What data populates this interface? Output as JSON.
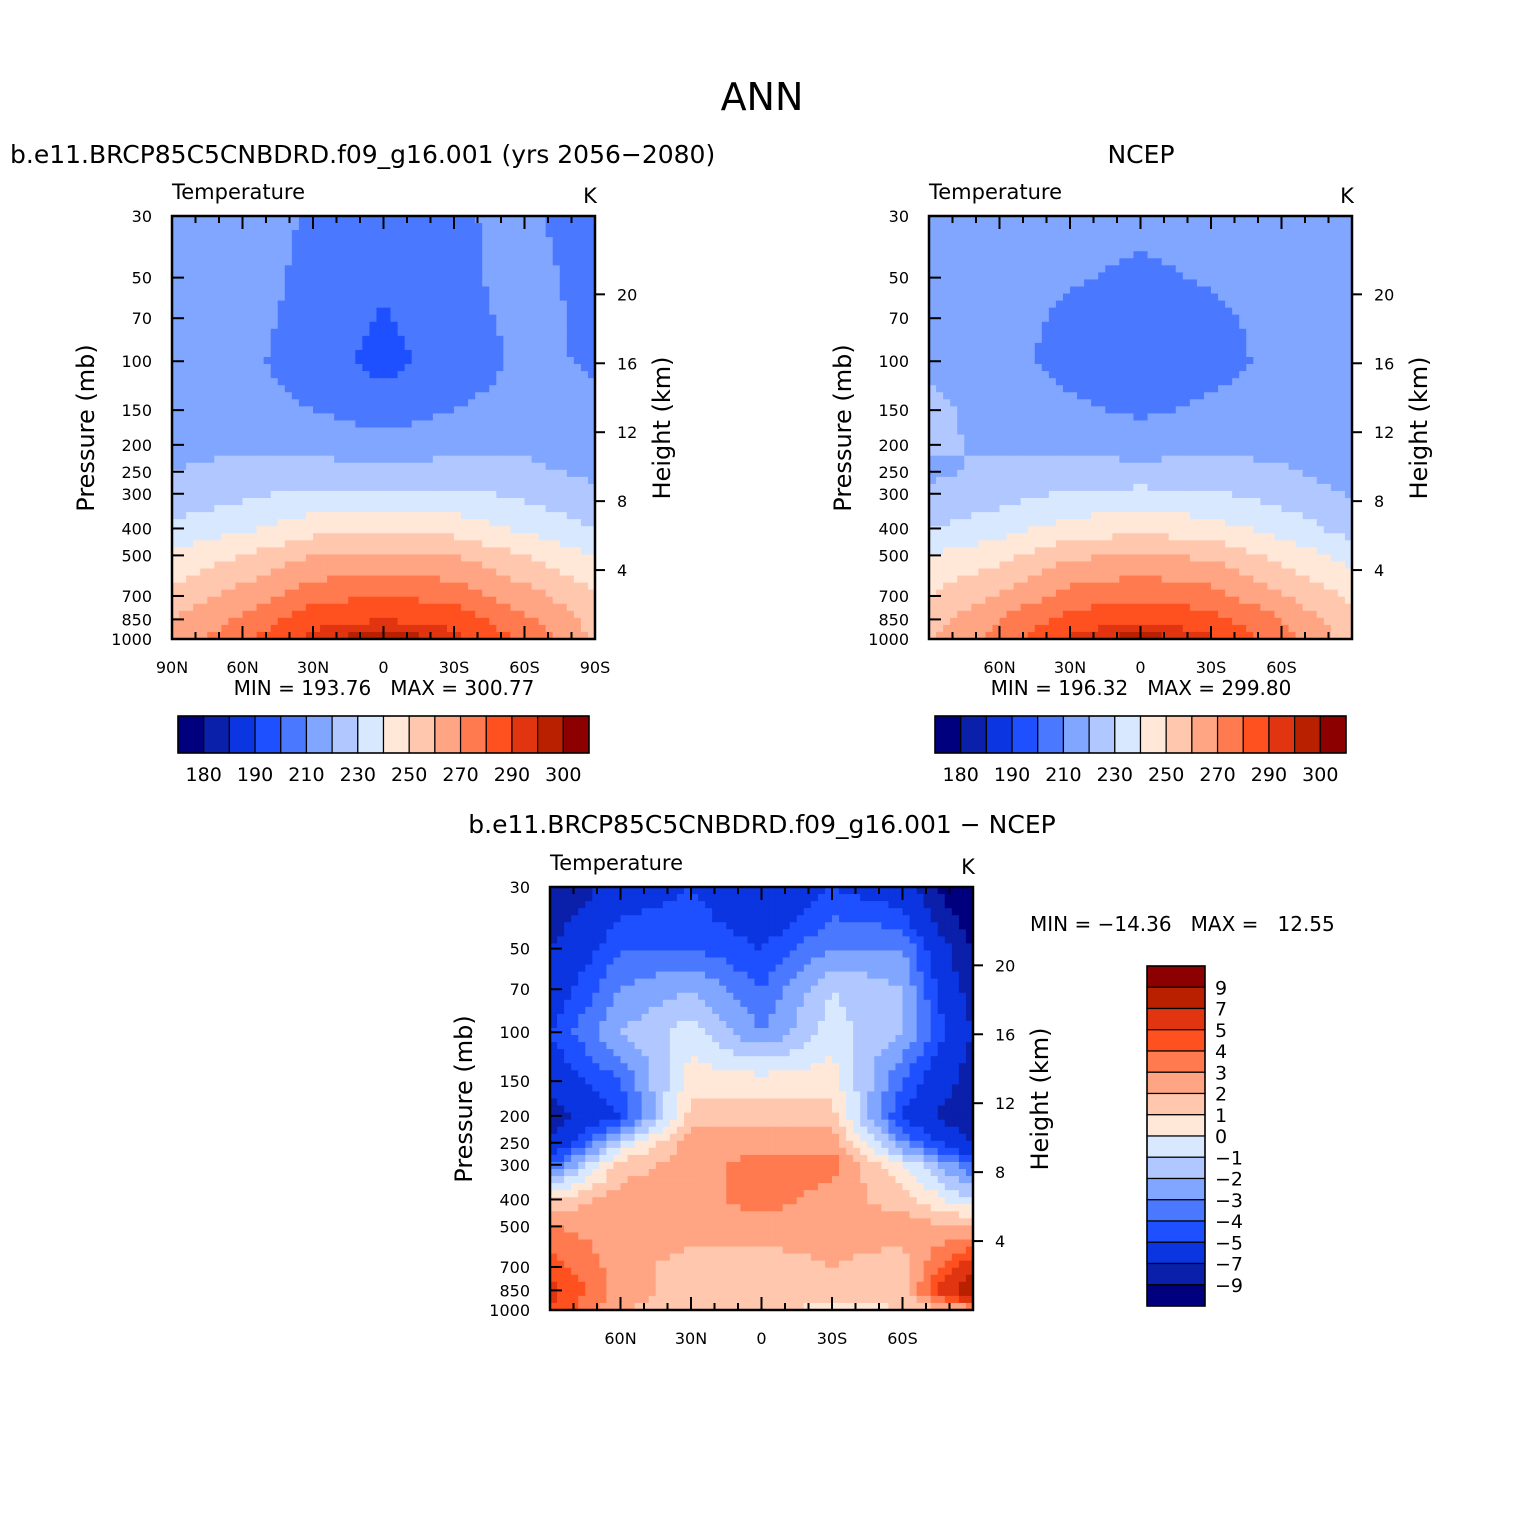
{
  "figure": {
    "title": "ANN"
  },
  "colors": {
    "abs_scale": [
      "#00007f",
      "#0a1faa",
      "#0a35e0",
      "#1e50ff",
      "#4a78ff",
      "#80a6ff",
      "#b0c8ff",
      "#d8e8ff",
      "#ffe8d8",
      "#ffc8ae",
      "#ffa583",
      "#ff7b4f",
      "#ff5020",
      "#e03510",
      "#b82000",
      "#8c0000"
    ],
    "diff_scale": [
      "#8c0000",
      "#b82000",
      "#e03510",
      "#ff5020",
      "#ff7b4f",
      "#ffa583",
      "#ffc8ae",
      "#ffe8d8",
      "#d8e8ff",
      "#b0c8ff",
      "#80a6ff",
      "#4a78ff",
      "#1e50ff",
      "#0a35e0",
      "#0a1faa",
      "#00007f"
    ]
  },
  "chart_data": [
    {
      "type": "heatmap",
      "id": "model",
      "title": "b.e11.BRCP85C5CNBDRD.f09_g16.001 (yrs 2056−2080)",
      "subtitle_left": "Temperature",
      "units": "K",
      "ylabel": "Pressure (mb)",
      "ylabel_right": "Height (km)",
      "x_ticks": [
        "90N",
        "60N",
        "30N",
        "0",
        "30S",
        "60S",
        "90S"
      ],
      "y_ticks": [
        "30",
        "50",
        "70",
        "100",
        "150",
        "200",
        "250",
        "300",
        "400",
        "500",
        "700",
        "850",
        "1000"
      ],
      "y_ticks_right": [
        "20",
        "16",
        "12",
        "8",
        "4"
      ],
      "stats": "MIN = 193.76   MAX = 300.77",
      "colorbar_labels": [
        "180",
        "190",
        "210",
        "230",
        "250",
        "270",
        "290",
        "300"
      ],
      "x": [
        90,
        60,
        30,
        0,
        -30,
        -60,
        -90
      ],
      "levels_mb": [
        30,
        50,
        70,
        100,
        150,
        200,
        250,
        300,
        400,
        500,
        700,
        850,
        1000
      ],
      "values": [
        [
          212,
          214,
          209,
          206,
          209,
          212,
          204
        ],
        [
          214,
          215,
          207,
          202,
          207,
          214,
          206
        ],
        [
          215,
          214,
          206,
          199,
          206,
          213,
          208
        ],
        [
          215,
          213,
          204,
          197,
          204,
          212,
          209
        ],
        [
          216,
          215,
          210,
          204,
          210,
          214,
          212
        ],
        [
          218,
          219,
          217,
          214,
          217,
          219,
          214
        ],
        [
          220,
          222,
          224,
          222,
          224,
          222,
          218
        ],
        [
          223,
          228,
          232,
          233,
          232,
          228,
          222
        ],
        [
          232,
          238,
          246,
          248,
          246,
          238,
          230
        ],
        [
          242,
          250,
          260,
          262,
          260,
          250,
          240
        ],
        [
          252,
          264,
          276,
          280,
          276,
          264,
          252
        ],
        [
          260,
          272,
          286,
          290,
          286,
          272,
          256
        ],
        [
          262,
          278,
          293,
          300,
          293,
          278,
          258
        ]
      ]
    },
    {
      "type": "heatmap",
      "id": "obs",
      "title": "NCEP",
      "subtitle_left": "Temperature",
      "units": "K",
      "ylabel": "Pressure (mb)",
      "ylabel_right": "Height (km)",
      "x_ticks": [
        "60N",
        "30N",
        "0",
        "30S",
        "60S"
      ],
      "y_ticks": [
        "30",
        "50",
        "70",
        "100",
        "150",
        "200",
        "250",
        "300",
        "400",
        "500",
        "700",
        "850",
        "1000"
      ],
      "y_ticks_right": [
        "20",
        "16",
        "12",
        "8",
        "4"
      ],
      "stats": "MIN = 196.32   MAX = 299.80",
      "colorbar_labels": [
        "180",
        "190",
        "210",
        "230",
        "250",
        "270",
        "290",
        "300"
      ],
      "x": [
        90,
        60,
        30,
        0,
        -30,
        -60,
        -90
      ],
      "levels_mb": [
        30,
        50,
        70,
        100,
        150,
        200,
        250,
        300,
        400,
        500,
        700,
        850,
        1000
      ],
      "values": [
        [
          214,
          216,
          214,
          213,
          214,
          215,
          213
        ],
        [
          214,
          215,
          211,
          208,
          211,
          214,
          210
        ],
        [
          215,
          214,
          208,
          204,
          208,
          213,
          211
        ],
        [
          218,
          214,
          206,
          201,
          206,
          213,
          212
        ],
        [
          222,
          217,
          212,
          208,
          212,
          215,
          213
        ],
        [
          221,
          219,
          218,
          216,
          218,
          218,
          215
        ],
        [
          219,
          221,
          223,
          223,
          223,
          221,
          216
        ],
        [
          221,
          226,
          231,
          233,
          231,
          226,
          219
        ],
        [
          230,
          236,
          244,
          247,
          244,
          236,
          226
        ],
        [
          240,
          247,
          258,
          261,
          258,
          247,
          236
        ],
        [
          250,
          261,
          274,
          278,
          274,
          261,
          248
        ],
        [
          256,
          270,
          284,
          288,
          284,
          270,
          252
        ],
        [
          258,
          275,
          292,
          299,
          292,
          275,
          255
        ]
      ]
    },
    {
      "type": "heatmap",
      "id": "diff",
      "title": "b.e11.BRCP85C5CNBDRD.f09_g16.001 − NCEP",
      "subtitle_left": "Temperature",
      "units": "K",
      "ylabel": "Pressure (mb)",
      "ylabel_right": "Height (km)",
      "x_ticks": [
        "60N",
        "30N",
        "0",
        "30S",
        "60S"
      ],
      "y_ticks": [
        "30",
        "50",
        "70",
        "100",
        "150",
        "200",
        "250",
        "300",
        "400",
        "500",
        "700",
        "850",
        "1000"
      ],
      "y_ticks_right": [
        "20",
        "16",
        "12",
        "8",
        "4"
      ],
      "stats": "MIN = −14.36   MAX =   12.55",
      "colorbar_labels": [
        "9",
        "7",
        "5",
        "4",
        "3",
        "2",
        "1",
        "0",
        "−1",
        "−2",
        "−3",
        "−4",
        "−5",
        "−7",
        "−9"
      ],
      "x": [
        90,
        60,
        30,
        0,
        -30,
        -60,
        -90
      ],
      "levels_mb": [
        30,
        50,
        70,
        100,
        150,
        200,
        250,
        300,
        400,
        500,
        700,
        850,
        1000
      ],
      "values": [
        [
          -9,
          -6,
          -5,
          -7,
          -5,
          -6,
          -12
        ],
        [
          -7,
          -4,
          -4,
          -5,
          -3,
          -3,
          -9
        ],
        [
          -6,
          -3,
          -2,
          -4,
          -1,
          -2,
          -8
        ],
        [
          -5,
          -2,
          -0.5,
          -3,
          -0.5,
          -2,
          -7
        ],
        [
          -6,
          -4,
          0.5,
          0.5,
          0.5,
          -4,
          -8
        ],
        [
          -8,
          -5,
          1.5,
          1.5,
          1.5,
          -5,
          -9
        ],
        [
          -7,
          -1,
          2.5,
          2.5,
          2.5,
          -3,
          -7
        ],
        [
          -4,
          1.5,
          2.5,
          3.5,
          3.5,
          0,
          -4
        ],
        [
          1,
          2.5,
          2.5,
          3.5,
          2.5,
          1.5,
          -1
        ],
        [
          3,
          2.5,
          2.5,
          2.5,
          2.5,
          2.5,
          2
        ],
        [
          4.5,
          2.5,
          1.5,
          1.5,
          2,
          1.5,
          6
        ],
        [
          5.5,
          2.5,
          1.5,
          1.5,
          1.5,
          1.5,
          9
        ],
        [
          5,
          2,
          1.5,
          1.5,
          0.5,
          1,
          2
        ]
      ]
    }
  ]
}
